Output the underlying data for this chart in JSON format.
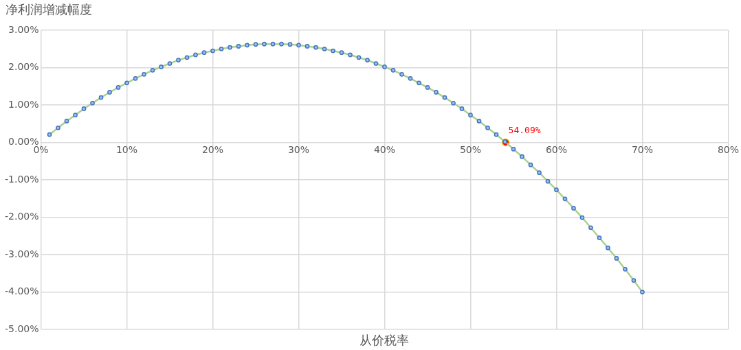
{
  "chart_data": {
    "type": "line",
    "ylabel": "净利润增减幅度",
    "xlabel": "从价税率",
    "x": [
      1,
      2,
      3,
      4,
      5,
      6,
      7,
      8,
      9,
      10,
      11,
      12,
      13,
      14,
      15,
      16,
      17,
      18,
      19,
      20,
      21,
      22,
      23,
      24,
      25,
      26,
      27,
      28,
      29,
      30,
      31,
      32,
      33,
      34,
      35,
      36,
      37,
      38,
      39,
      40,
      41,
      42,
      43,
      44,
      45,
      46,
      47,
      48,
      49,
      50,
      51,
      52,
      53,
      54,
      55,
      56,
      57,
      58,
      59,
      60,
      61,
      62,
      63,
      64,
      65,
      66,
      67,
      68,
      69,
      70
    ],
    "series": [
      {
        "color": "#a9d18e",
        "colors": [
          "#4472c4",
          "#4472c4",
          "#4472c4",
          "#4472c4",
          "#4472c4",
          "#4472c4",
          "#4472c4",
          "#4472c4",
          "#4472c4",
          "#4472c4",
          "#4472c4",
          "#4472c4",
          "#4472c4",
          "#4472c4",
          "#4472c4",
          "#4472c4",
          "#4472c4",
          "#4472c4",
          "#4472c4",
          "#4472c4",
          "#4472c4",
          "#4472c4",
          "#4472c4",
          "#4472c4",
          "#4472c4",
          "#4472c4",
          "#4472c4",
          "#4472c4",
          "#4472c4",
          "#4472c4",
          "#4472c4",
          "#4472c4",
          "#4472c4",
          "#4472c4",
          "#4472c4",
          "#4472c4",
          "#4472c4",
          "#4472c4",
          "#4472c4",
          "#4472c4",
          "#4472c4",
          "#4472c4",
          "#4472c4",
          "#4472c4",
          "#4472c4",
          "#4472c4",
          "#4472c4",
          "#4472c4",
          "#4472c4",
          "#4472c4",
          "#4472c4",
          "#4472c4",
          "#4472c4",
          "#4472c4",
          "#4472c4",
          "#4472c4",
          "#4472c4",
          "#4472c4",
          "#4472c4",
          "#4472c4",
          "#4472c4",
          "#4472c4",
          "#4472c4",
          "#4472c4",
          "#4472c4",
          "#4472c4",
          "#4472c4",
          "#4472c4",
          "#4472c4",
          "#4472c4"
        ],
        "values": [
          0.21,
          0.39,
          0.57,
          0.73,
          0.9,
          1.05,
          1.2,
          1.34,
          1.47,
          1.59,
          1.71,
          1.82,
          1.93,
          2.02,
          2.11,
          2.2,
          2.27,
          2.34,
          2.4,
          2.45,
          2.5,
          2.54,
          2.57,
          2.6,
          2.62,
          2.63,
          2.63,
          2.63,
          2.62,
          2.6,
          2.57,
          2.54,
          2.5,
          2.45,
          2.4,
          2.34,
          2.27,
          2.2,
          2.11,
          2.02,
          1.93,
          1.82,
          1.71,
          1.59,
          1.47,
          1.34,
          1.2,
          1.05,
          0.9,
          0.73,
          0.57,
          0.39,
          0.21,
          0.02,
          -0.18,
          -0.38,
          -0.6,
          -0.81,
          -1.04,
          -1.27,
          -1.51,
          -1.76,
          -2.01,
          -2.28,
          -2.55,
          -2.82,
          -3.1,
          -3.39,
          -3.69,
          -4.0
        ]
      },
      {
        "type": "scatter",
        "color": "#ff0000",
        "x": [
          54.09
        ],
        "values": [
          0
        ]
      }
    ],
    "annotations": [
      {
        "text": "54.09%",
        "x": 54.09,
        "y": 0
      }
    ],
    "marker": "circle",
    "grid": true,
    "legend": false,
    "xlim": [
      0,
      80
    ],
    "xticks": [
      {
        "value": 0,
        "label": "0%"
      },
      {
        "value": 10,
        "label": "10%"
      },
      {
        "value": 20,
        "label": "20%"
      },
      {
        "value": 30,
        "label": "30%"
      },
      {
        "value": 40,
        "label": "40%"
      },
      {
        "value": 50,
        "label": "50%"
      },
      {
        "value": 60,
        "label": "60%"
      },
      {
        "value": 70,
        "label": "70%"
      },
      {
        "value": 80,
        "label": "80%"
      }
    ],
    "ylim": [
      -5,
      3
    ],
    "yticks": [
      {
        "value": 3,
        "label": "3.00%"
      },
      {
        "value": 2,
        "label": "2.00%"
      },
      {
        "value": 1,
        "label": "1.00%"
      },
      {
        "value": 0,
        "label": "0.00%"
      },
      {
        "value": -1,
        "label": "-1.00%"
      },
      {
        "value": -2,
        "label": "-2.00%"
      },
      {
        "value": -3,
        "label": "-3.00%"
      },
      {
        "value": -4,
        "label": "-4.00%"
      },
      {
        "value": -5,
        "label": "-5.00%"
      }
    ]
  }
}
